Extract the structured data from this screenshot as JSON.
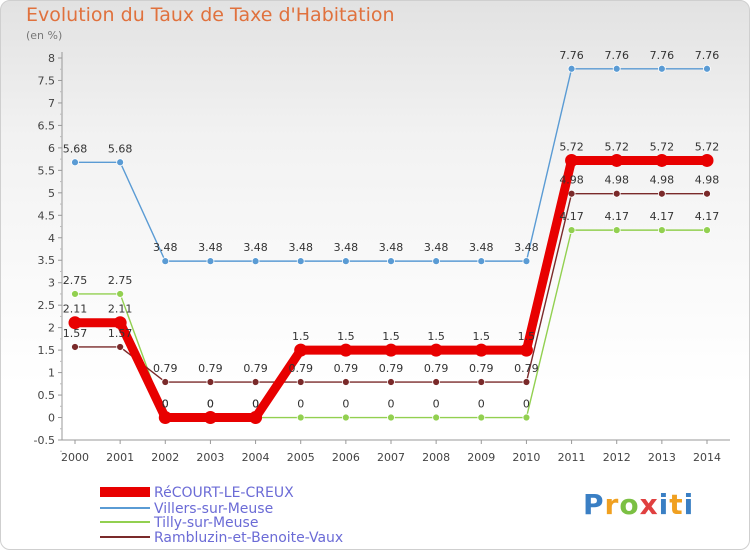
{
  "header": {
    "title": "Evolution du Taux de Taxe d'Habitation",
    "subtitle": "(en %)"
  },
  "branding": {
    "logo_text": "Proxiti"
  },
  "chart_data": {
    "type": "line",
    "title": "Evolution du Taux de Taxe d'Habitation",
    "ylabel": "(en %)",
    "xlabel": "",
    "x": [
      "2000",
      "2001",
      "2002",
      "2003",
      "2004",
      "2005",
      "2006",
      "2007",
      "2008",
      "2009",
      "2010",
      "2011",
      "2012",
      "2013",
      "2014"
    ],
    "ylim": [
      -0.5,
      8
    ],
    "yticks": [
      "-0.5",
      "0",
      "0.5",
      "1",
      "1.5",
      "2",
      "2.5",
      "3",
      "3.5",
      "4",
      "4.5",
      "5",
      "5.5",
      "6",
      "6.5",
      "7",
      "7.5",
      "8"
    ],
    "grid": false,
    "legend_position": "bottom-left",
    "series": [
      {
        "name": "RéCOURT-LE-CREUX",
        "color": "#e80000",
        "values": [
          2.11,
          2.11,
          0,
          0,
          0,
          1.5,
          1.5,
          1.5,
          1.5,
          1.5,
          1.5,
          5.72,
          5.72,
          5.72,
          5.72
        ],
        "labels": [
          "2.11",
          "2.11",
          "0",
          "0",
          "0",
          "1.5",
          "1.5",
          "1.5",
          "1.5",
          "1.5",
          "1.5",
          "5.72",
          "5.72",
          "5.72",
          "5.72"
        ]
      },
      {
        "name": "Villers-sur-Meuse",
        "color": "#5a9bd4",
        "values": [
          5.68,
          5.68,
          3.48,
          3.48,
          3.48,
          3.48,
          3.48,
          3.48,
          3.48,
          3.48,
          3.48,
          7.76,
          7.76,
          7.76,
          7.76
        ],
        "labels": [
          "5.68",
          "5.68",
          "3.48",
          "3.48",
          "3.48",
          "3.48",
          "3.48",
          "3.48",
          "3.48",
          "3.48",
          "3.48",
          "7.76",
          "7.76",
          "7.76",
          "7.76"
        ]
      },
      {
        "name": "Tilly-sur-Meuse",
        "color": "#92d050",
        "values": [
          2.75,
          2.75,
          0,
          0,
          0,
          0,
          0,
          0,
          0,
          0,
          0,
          4.17,
          4.17,
          4.17,
          4.17
        ],
        "labels": [
          "2.75",
          "2.75",
          "0",
          "0",
          "0",
          "0",
          "0",
          "0",
          "0",
          "0",
          "0",
          "4.17",
          "4.17",
          "4.17",
          "4.17"
        ]
      },
      {
        "name": "Rambluzin-et-Benoite-Vaux",
        "color": "#7a2a2a",
        "values": [
          1.57,
          1.57,
          0.79,
          0.79,
          0.79,
          0.79,
          0.79,
          0.79,
          0.79,
          0.79,
          0.79,
          4.98,
          4.98,
          4.98,
          4.98
        ],
        "labels": [
          "1.57",
          "1.57",
          "0.79",
          "0.79",
          "0.79",
          "0.79",
          "0.79",
          "0.79",
          "0.79",
          "0.79",
          "0.79",
          "4.98",
          "4.98",
          "4.98",
          "4.98"
        ]
      }
    ]
  }
}
